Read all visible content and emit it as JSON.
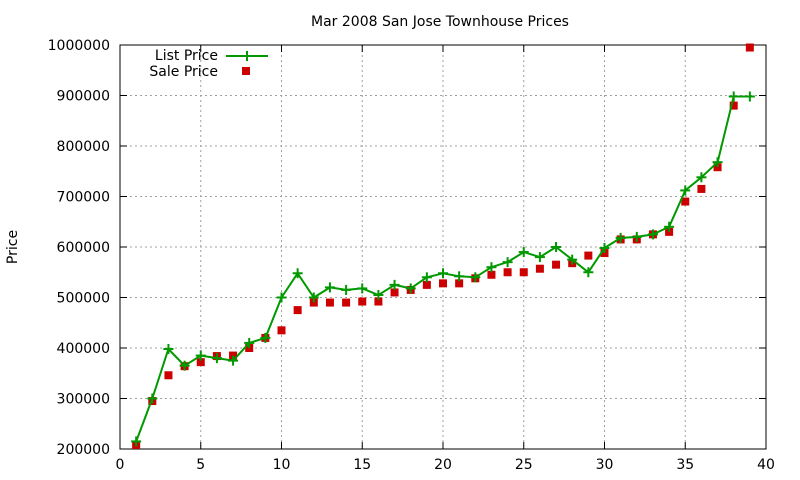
{
  "chart_data": {
    "type": "line",
    "title": "Mar 2008 San Jose Townhouse Prices",
    "xlabel": "",
    "ylabel": "Price",
    "xlim": [
      0,
      40
    ],
    "ylim": [
      200000,
      1000000
    ],
    "x_ticks": [
      0,
      5,
      10,
      15,
      20,
      25,
      30,
      35,
      40
    ],
    "y_ticks": [
      200000,
      300000,
      400000,
      500000,
      600000,
      700000,
      800000,
      900000,
      1000000
    ],
    "grid": true,
    "legend_position": "top-left",
    "series": [
      {
        "name": "List Price",
        "style": "line-with-plus-markers",
        "color": "#009900",
        "points": [
          [
            1,
            215000
          ],
          [
            2,
            300000
          ],
          [
            3,
            398000
          ],
          [
            4,
            365000
          ],
          [
            5,
            385000
          ],
          [
            6,
            380000
          ],
          [
            7,
            375000
          ],
          [
            8,
            410000
          ],
          [
            9,
            420000
          ],
          [
            10,
            500000
          ],
          [
            11,
            548000
          ],
          [
            12,
            500000
          ],
          [
            13,
            520000
          ],
          [
            14,
            515000
          ],
          [
            15,
            518000
          ],
          [
            16,
            505000
          ],
          [
            17,
            525000
          ],
          [
            18,
            518000
          ],
          [
            19,
            540000
          ],
          [
            20,
            548000
          ],
          [
            21,
            542000
          ],
          [
            22,
            540000
          ],
          [
            23,
            560000
          ],
          [
            24,
            570000
          ],
          [
            25,
            590000
          ],
          [
            26,
            580000
          ],
          [
            27,
            600000
          ],
          [
            28,
            575000
          ],
          [
            29,
            550000
          ],
          [
            30,
            598000
          ],
          [
            31,
            618000
          ],
          [
            32,
            620000
          ],
          [
            33,
            625000
          ],
          [
            34,
            640000
          ],
          [
            35,
            712000
          ],
          [
            36,
            738000
          ],
          [
            37,
            768000
          ],
          [
            38,
            898000
          ],
          [
            39,
            898000
          ]
        ]
      },
      {
        "name": "Sale Price",
        "style": "square-markers",
        "color": "#cc0000",
        "points": [
          [
            1,
            208000
          ],
          [
            2,
            295000
          ],
          [
            3,
            346000
          ],
          [
            4,
            364000
          ],
          [
            5,
            372000
          ],
          [
            6,
            384000
          ],
          [
            7,
            385000
          ],
          [
            8,
            400000
          ],
          [
            9,
            420000
          ],
          [
            10,
            435000
          ],
          [
            11,
            475000
          ],
          [
            12,
            490000
          ],
          [
            13,
            490000
          ],
          [
            14,
            490000
          ],
          [
            15,
            492000
          ],
          [
            16,
            492000
          ],
          [
            17,
            510000
          ],
          [
            18,
            515000
          ],
          [
            19,
            525000
          ],
          [
            20,
            528000
          ],
          [
            21,
            528000
          ],
          [
            22,
            538000
          ],
          [
            23,
            545000
          ],
          [
            24,
            550000
          ],
          [
            25,
            550000
          ],
          [
            26,
            557000
          ],
          [
            27,
            565000
          ],
          [
            28,
            568000
          ],
          [
            29,
            583000
          ],
          [
            30,
            588000
          ],
          [
            31,
            615000
          ],
          [
            32,
            615000
          ],
          [
            33,
            625000
          ],
          [
            34,
            630000
          ],
          [
            35,
            690000
          ],
          [
            36,
            715000
          ],
          [
            37,
            758000
          ],
          [
            38,
            880000
          ],
          [
            39,
            995000
          ]
        ]
      }
    ]
  }
}
